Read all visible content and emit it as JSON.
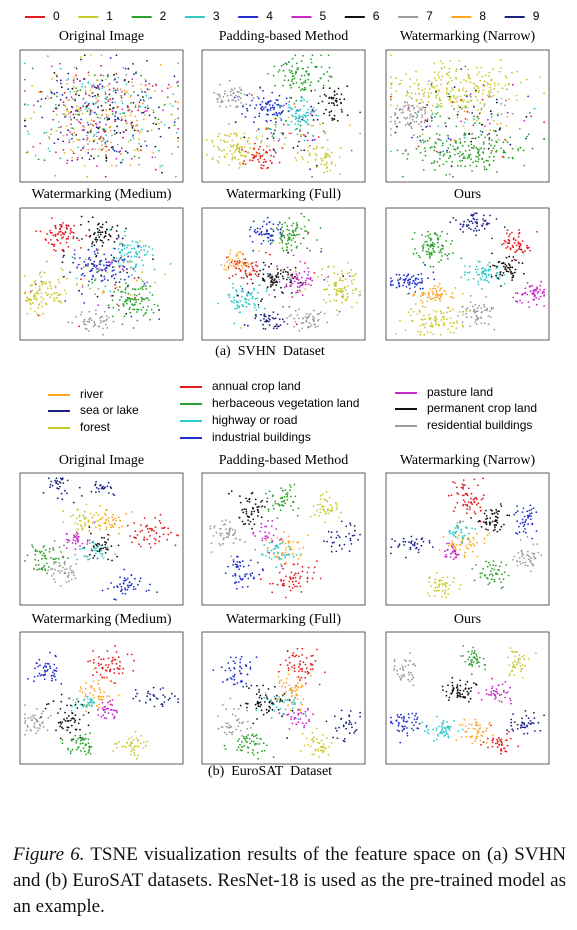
{
  "svhn": {
    "legend": [
      {
        "label": "0",
        "color": "#e41a1c"
      },
      {
        "label": "1",
        "color": "#c8c82a"
      },
      {
        "label": "2",
        "color": "#2ca02c"
      },
      {
        "label": "3",
        "color": "#2ec8c8"
      },
      {
        "label": "4",
        "color": "#2030d0"
      },
      {
        "label": "5",
        "color": "#c828c8"
      },
      {
        "label": "6",
        "color": "#111111"
      },
      {
        "label": "7",
        "color": "#9a9a9a"
      },
      {
        "label": "8",
        "color": "#ffa520"
      },
      {
        "label": "9",
        "color": "#1a237e"
      }
    ],
    "panels": [
      "Original Image",
      "Padding-based Method",
      "Watermarking (Narrow)",
      "Watermarking (Medium)",
      "Watermarking (Full)",
      "Ours"
    ],
    "caption": "(a)  SVHN  Dataset"
  },
  "eurosat": {
    "legend": [
      {
        "label": "river",
        "color": "#ffa520"
      },
      {
        "label": "sea or lake",
        "color": "#1a237e"
      },
      {
        "label": "forest",
        "color": "#c8c82a"
      },
      {
        "label": "annual crop land",
        "color": "#e41a1c"
      },
      {
        "label": "herbaceous vegetation land",
        "color": "#2ca02c"
      },
      {
        "label": "highway or road",
        "color": "#2ec8c8"
      },
      {
        "label": "industrial buildings",
        "color": "#2030d0"
      },
      {
        "label": "pasture land",
        "color": "#c828c8"
      },
      {
        "label": "permanent crop land",
        "color": "#111111"
      },
      {
        "label": "residential buildings",
        "color": "#9a9a9a"
      }
    ],
    "panels": [
      "Original Image",
      "Padding-based Method",
      "Watermarking (Narrow)",
      "Watermarking (Medium)",
      "Watermarking (Full)",
      "Ours"
    ],
    "caption": "(b)  EuroSAT  Dataset"
  },
  "figure_caption": {
    "label": "Figure 6.",
    "text": "TSNE visualization results of the feature space on (a) SVHN and (b) EuroSAT datasets. ResNet-18 is used as the pre-trained model as an example."
  }
}
